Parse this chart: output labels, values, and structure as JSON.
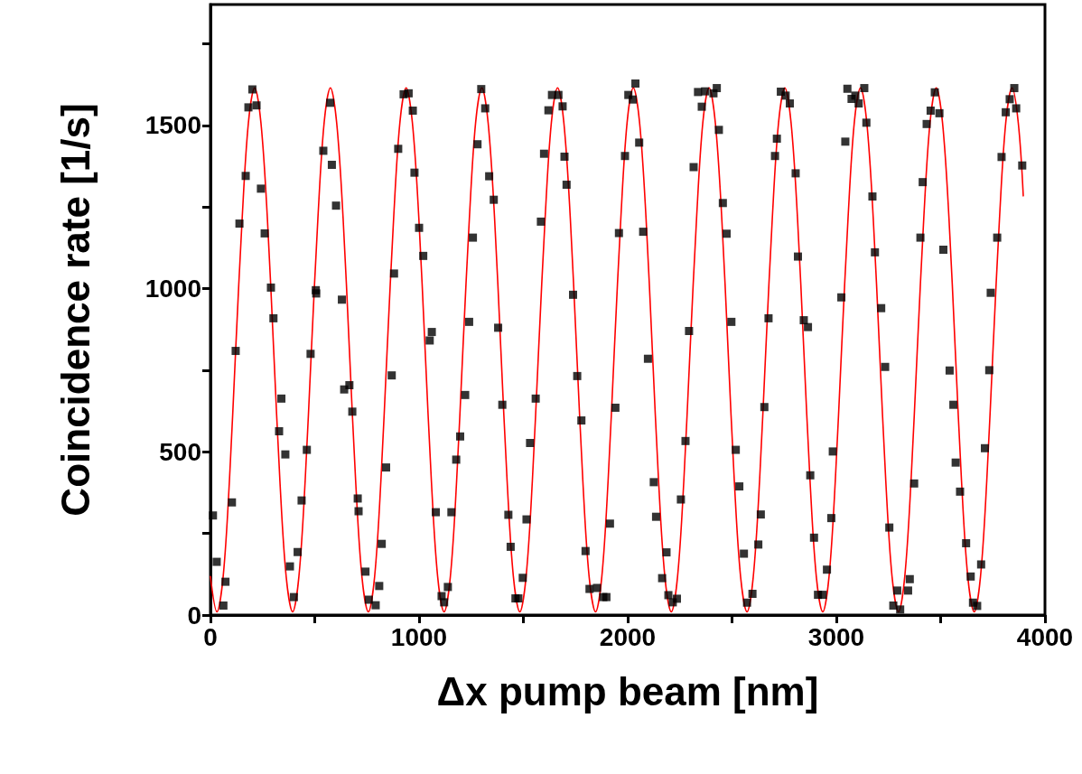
{
  "chart_data": {
    "type": "scatter",
    "xlabel": "Δx pump beam [nm]",
    "ylabel": "Coincidence rate [1/s]",
    "xlim": [
      0,
      4000
    ],
    "ylim": [
      0,
      1870
    ],
    "xticks": [
      0,
      {
        "value": 500,
        "label": null
      },
      1000,
      {
        "value": 1500,
        "label": null
      },
      2000,
      {
        "value": 2500,
        "label": null
      },
      3000,
      {
        "value": 3500,
        "label": null
      },
      4000
    ],
    "yticks": [
      0,
      {
        "value": 250,
        "label": null
      },
      500,
      {
        "value": 750,
        "label": null
      },
      1000,
      {
        "value": 1250,
        "label": null
      },
      1500,
      {
        "value": 1750,
        "label": null
      }
    ],
    "grid": false,
    "series": [
      {
        "color": "#000000",
        "marker": "square",
        "x": [
          12,
          30,
          62,
          72,
          103,
          121,
          139,
          169,
          182,
          201,
          221,
          242,
          260,
          290,
          302,
          329,
          340,
          359,
          381,
          400,
          418,
          437,
          462,
          480,
          505,
          507,
          541,
          574,
          582,
          602,
          630,
          641,
          666,
          680,
          706,
          710,
          743,
          759,
          792,
          809,
          821,
          842,
          869,
          880,
          900,
          926,
          950,
          970,
          978,
          1000,
          1020,
          1051,
          1061,
          1080,
          1108,
          1120,
          1138,
          1155,
          1178,
          1197,
          1221,
          1240,
          1258,
          1280,
          1298,
          1317,
          1336,
          1358,
          1379,
          1399,
          1428,
          1439,
          1462,
          1476,
          1497,
          1515,
          1532,
          1559,
          1584,
          1599,
          1620,
          1637,
          1668,
          1688,
          1697,
          1707,
          1738,
          1758,
          1778,
          1798,
          1817,
          1853,
          1883,
          1898,
          1915,
          1941,
          1958,
          1987,
          2003,
          2024,
          2037,
          2055,
          2074,
          2097,
          2125,
          2136,
          2165,
          2186,
          2195,
          2216,
          2236,
          2255,
          2277,
          2294,
          2316,
          2337,
          2355,
          2371,
          2411,
          2427,
          2437,
          2456,
          2474,
          2497,
          2518,
          2535,
          2557,
          2572,
          2598,
          2626,
          2638,
          2655,
          2675,
          2706,
          2715,
          2734,
          2757,
          2777,
          2805,
          2816,
          2844,
          2864,
          2875,
          2893,
          2912,
          2935,
          2955,
          2976,
          2983,
          3024,
          3043,
          3053,
          3073,
          3091,
          3107,
          3134,
          3144,
          3173,
          3185,
          3215,
          3234,
          3254,
          3273,
          3292,
          3306,
          3344,
          3352,
          3373,
          3403,
          3414,
          3433,
          3452,
          3472,
          3494,
          3513,
          3543,
          3561,
          3572,
          3593,
          3622,
          3644,
          3655,
          3675,
          3694,
          3712,
          3733,
          3740,
          3771,
          3792,
          3812,
          3831,
          3853,
          3862,
          3891
        ],
        "values": [
          305,
          163,
          29,
          102,
          345,
          809,
          1199,
          1345,
          1555,
          1610,
          1561,
          1306,
          1169,
          1003,
          909,
          563,
          663,
          492,
          149,
          55,
          193,
          351,
          506,
          800,
          995,
          985,
          1422,
          1569,
          1379,
          1254,
          966,
          691,
          704,
          623,
          357,
          318,
          133,
          47,
          30,
          89,
          218,
          452,
          734,
          1046,
          1428,
          1595,
          1598,
          1545,
          1355,
          1186,
          1100,
          841,
          867,
          315,
          58,
          39,
          86,
          315,
          476,
          547,
          674,
          898,
          1156,
          1442,
          1611,
          1552,
          1344,
          1272,
          880,
          644,
          307,
          209,
          51,
          51,
          114,
          293,
          527,
          663,
          1205,
          1413,
          1546,
          1593,
          1593,
          1558,
          1404,
          1318,
          981,
          732,
          596,
          196,
          80,
          83,
          55,
          55,
          280,
          635,
          1170,
          1406,
          1593,
          1579,
          1628,
          1447,
          1174,
          785,
          407,
          301,
          113,
          192,
          61,
          39,
          50,
          354,
          533,
          870,
          1372,
          1602,
          1557,
          1604,
          1598,
          1614,
          1486,
          1262,
          1168,
          898,
          506,
          394,
          188,
          38,
          65,
          216,
          308,
          637,
          909,
          1406,
          1459,
          1603,
          1591,
          1567,
          1353,
          1098,
          903,
          882,
          428,
          237,
          62,
          62,
          139,
          297,
          501,
          973,
          1450,
          1612,
          1581,
          1591,
          1567,
          1614,
          1508,
          1282,
          1111,
          940,
          760,
          268,
          29,
          75,
          17,
          75,
          110,
          403,
          1156,
          1326,
          1504,
          1545,
          1601,
          1537,
          1119,
          749,
          644,
          467,
          378,
          220,
          118,
          38,
          28,
          155,
          511,
          750,
          987,
          1156,
          1403,
          1540,
          1580,
          1614,
          1552,
          1377
        ]
      },
      {
        "type": "line",
        "color": "#ff0000",
        "line_style": "solid",
        "x": [
          0,
          31,
          61,
          91,
          121,
          152,
          182,
          212,
          242,
          273,
          303,
          333,
          363,
          394,
          424,
          454,
          484,
          515,
          545,
          575,
          605,
          636,
          666,
          696,
          726,
          757,
          787,
          817,
          847,
          878,
          908,
          938,
          968,
          999,
          1029,
          1059,
          1089,
          1120,
          1150,
          1180,
          1210,
          1241,
          1271,
          1301,
          1331,
          1362,
          1392,
          1422,
          1452,
          1483,
          1513,
          1543,
          1573,
          1604,
          1634,
          1664,
          1694,
          1725,
          1755,
          1785,
          1815,
          1846,
          1876,
          1906,
          1936,
          1967,
          1997,
          2027,
          2057,
          2088,
          2118,
          2148,
          2178,
          2209,
          2239,
          2269,
          2299,
          2330,
          2360,
          2390,
          2420,
          2451,
          2481,
          2511,
          2541,
          2572,
          2602,
          2632,
          2662,
          2693,
          2723,
          2753,
          2783,
          2814,
          2844,
          2874,
          2904,
          2935,
          2965,
          2995,
          3025,
          3056,
          3086,
          3116,
          3146,
          3177,
          3207,
          3237,
          3267,
          3298,
          3328,
          3358,
          3388,
          3419,
          3449,
          3479,
          3509,
          3540,
          3570,
          3600,
          3630,
          3661,
          3691,
          3721,
          3751,
          3782,
          3812,
          3842,
          3872,
          3896
        ],
        "values": [
          118,
          10,
          118,
          411,
          813,
          1214,
          1508,
          1615,
          1508,
          1214,
          813,
          411,
          118,
          10,
          118,
          411,
          813,
          1214,
          1508,
          1615,
          1508,
          1214,
          813,
          411,
          118,
          10,
          118,
          411,
          813,
          1214,
          1508,
          1615,
          1508,
          1214,
          813,
          411,
          118,
          10,
          118,
          411,
          813,
          1214,
          1508,
          1615,
          1508,
          1214,
          813,
          411,
          118,
          10,
          118,
          411,
          813,
          1214,
          1508,
          1615,
          1508,
          1214,
          813,
          411,
          118,
          10,
          118,
          411,
          813,
          1214,
          1508,
          1615,
          1508,
          1214,
          813,
          411,
          118,
          10,
          118,
          411,
          813,
          1214,
          1508,
          1615,
          1508,
          1214,
          813,
          411,
          118,
          10,
          118,
          411,
          813,
          1214,
          1508,
          1615,
          1508,
          1214,
          813,
          411,
          118,
          10,
          118,
          411,
          813,
          1214,
          1508,
          1615,
          1508,
          1214,
          813,
          411,
          118,
          10,
          118,
          411,
          813,
          1214,
          1508,
          1615,
          1508,
          1214,
          813,
          411,
          118,
          10,
          118,
          411,
          813,
          1214,
          1508,
          1615,
          1508,
          1284
        ]
      }
    ]
  }
}
